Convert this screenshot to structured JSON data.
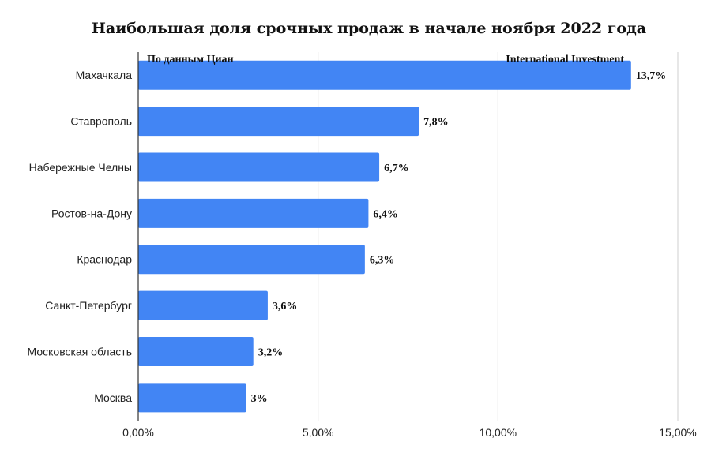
{
  "chart_data": {
    "type": "bar",
    "orientation": "horizontal",
    "title": "Наибольшая доля срочных продаж в начале ноября 2022 года",
    "source_left": "По данным Циан",
    "source_right": "International Investment",
    "categories": [
      "Махачкала",
      "Ставрополь",
      "Набережные Челны",
      "Ростов-на-Дону",
      "Краснодар",
      "Санкт-Петербург",
      "Московская область",
      "Москва"
    ],
    "values": [
      13.7,
      7.8,
      6.7,
      6.4,
      6.3,
      3.6,
      3.2,
      3.0
    ],
    "value_labels": [
      "13,7%",
      "7,8%",
      "6,7%",
      "6,4%",
      "6,3%",
      "3,6%",
      "3,2%",
      "3%"
    ],
    "xlim": [
      0,
      15
    ],
    "xticks": [
      0,
      5,
      10,
      15
    ],
    "xtick_labels": [
      "0,00%",
      "5,00%",
      "10,00%",
      "15,00%"
    ],
    "grid": true,
    "bar_color": "#4285f4"
  }
}
